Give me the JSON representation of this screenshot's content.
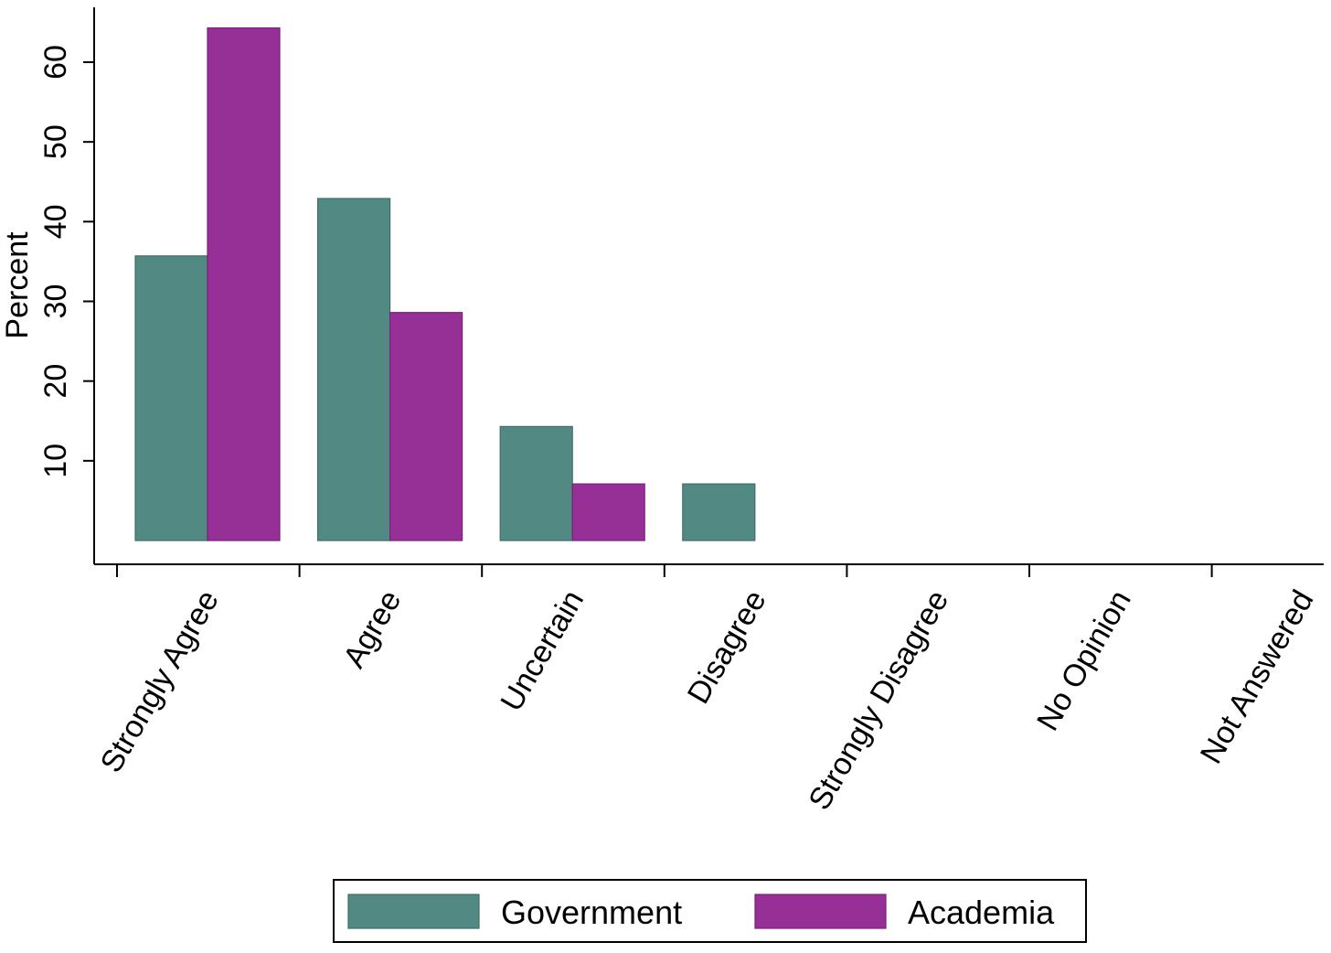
{
  "chart_data": {
    "type": "bar",
    "title": "",
    "xlabel": "",
    "ylabel": "Percent",
    "ylim": [
      0,
      67
    ],
    "yticks": [
      10,
      20,
      30,
      40,
      50,
      60
    ],
    "categories": [
      "Strongly Agree",
      "Agree",
      "Uncertain",
      "Disagree",
      "Strongly Disagree",
      "No Opinion",
      "Not Answered"
    ],
    "series": [
      {
        "name": "Government",
        "color": "#528982",
        "values": [
          35.7,
          42.9,
          14.3,
          7.1,
          0,
          0,
          0
        ]
      },
      {
        "name": "Academia",
        "color": "#973096",
        "values": [
          64.3,
          28.6,
          7.1,
          0,
          0,
          0,
          0
        ]
      }
    ],
    "grid": false,
    "legend_position": "bottom"
  }
}
